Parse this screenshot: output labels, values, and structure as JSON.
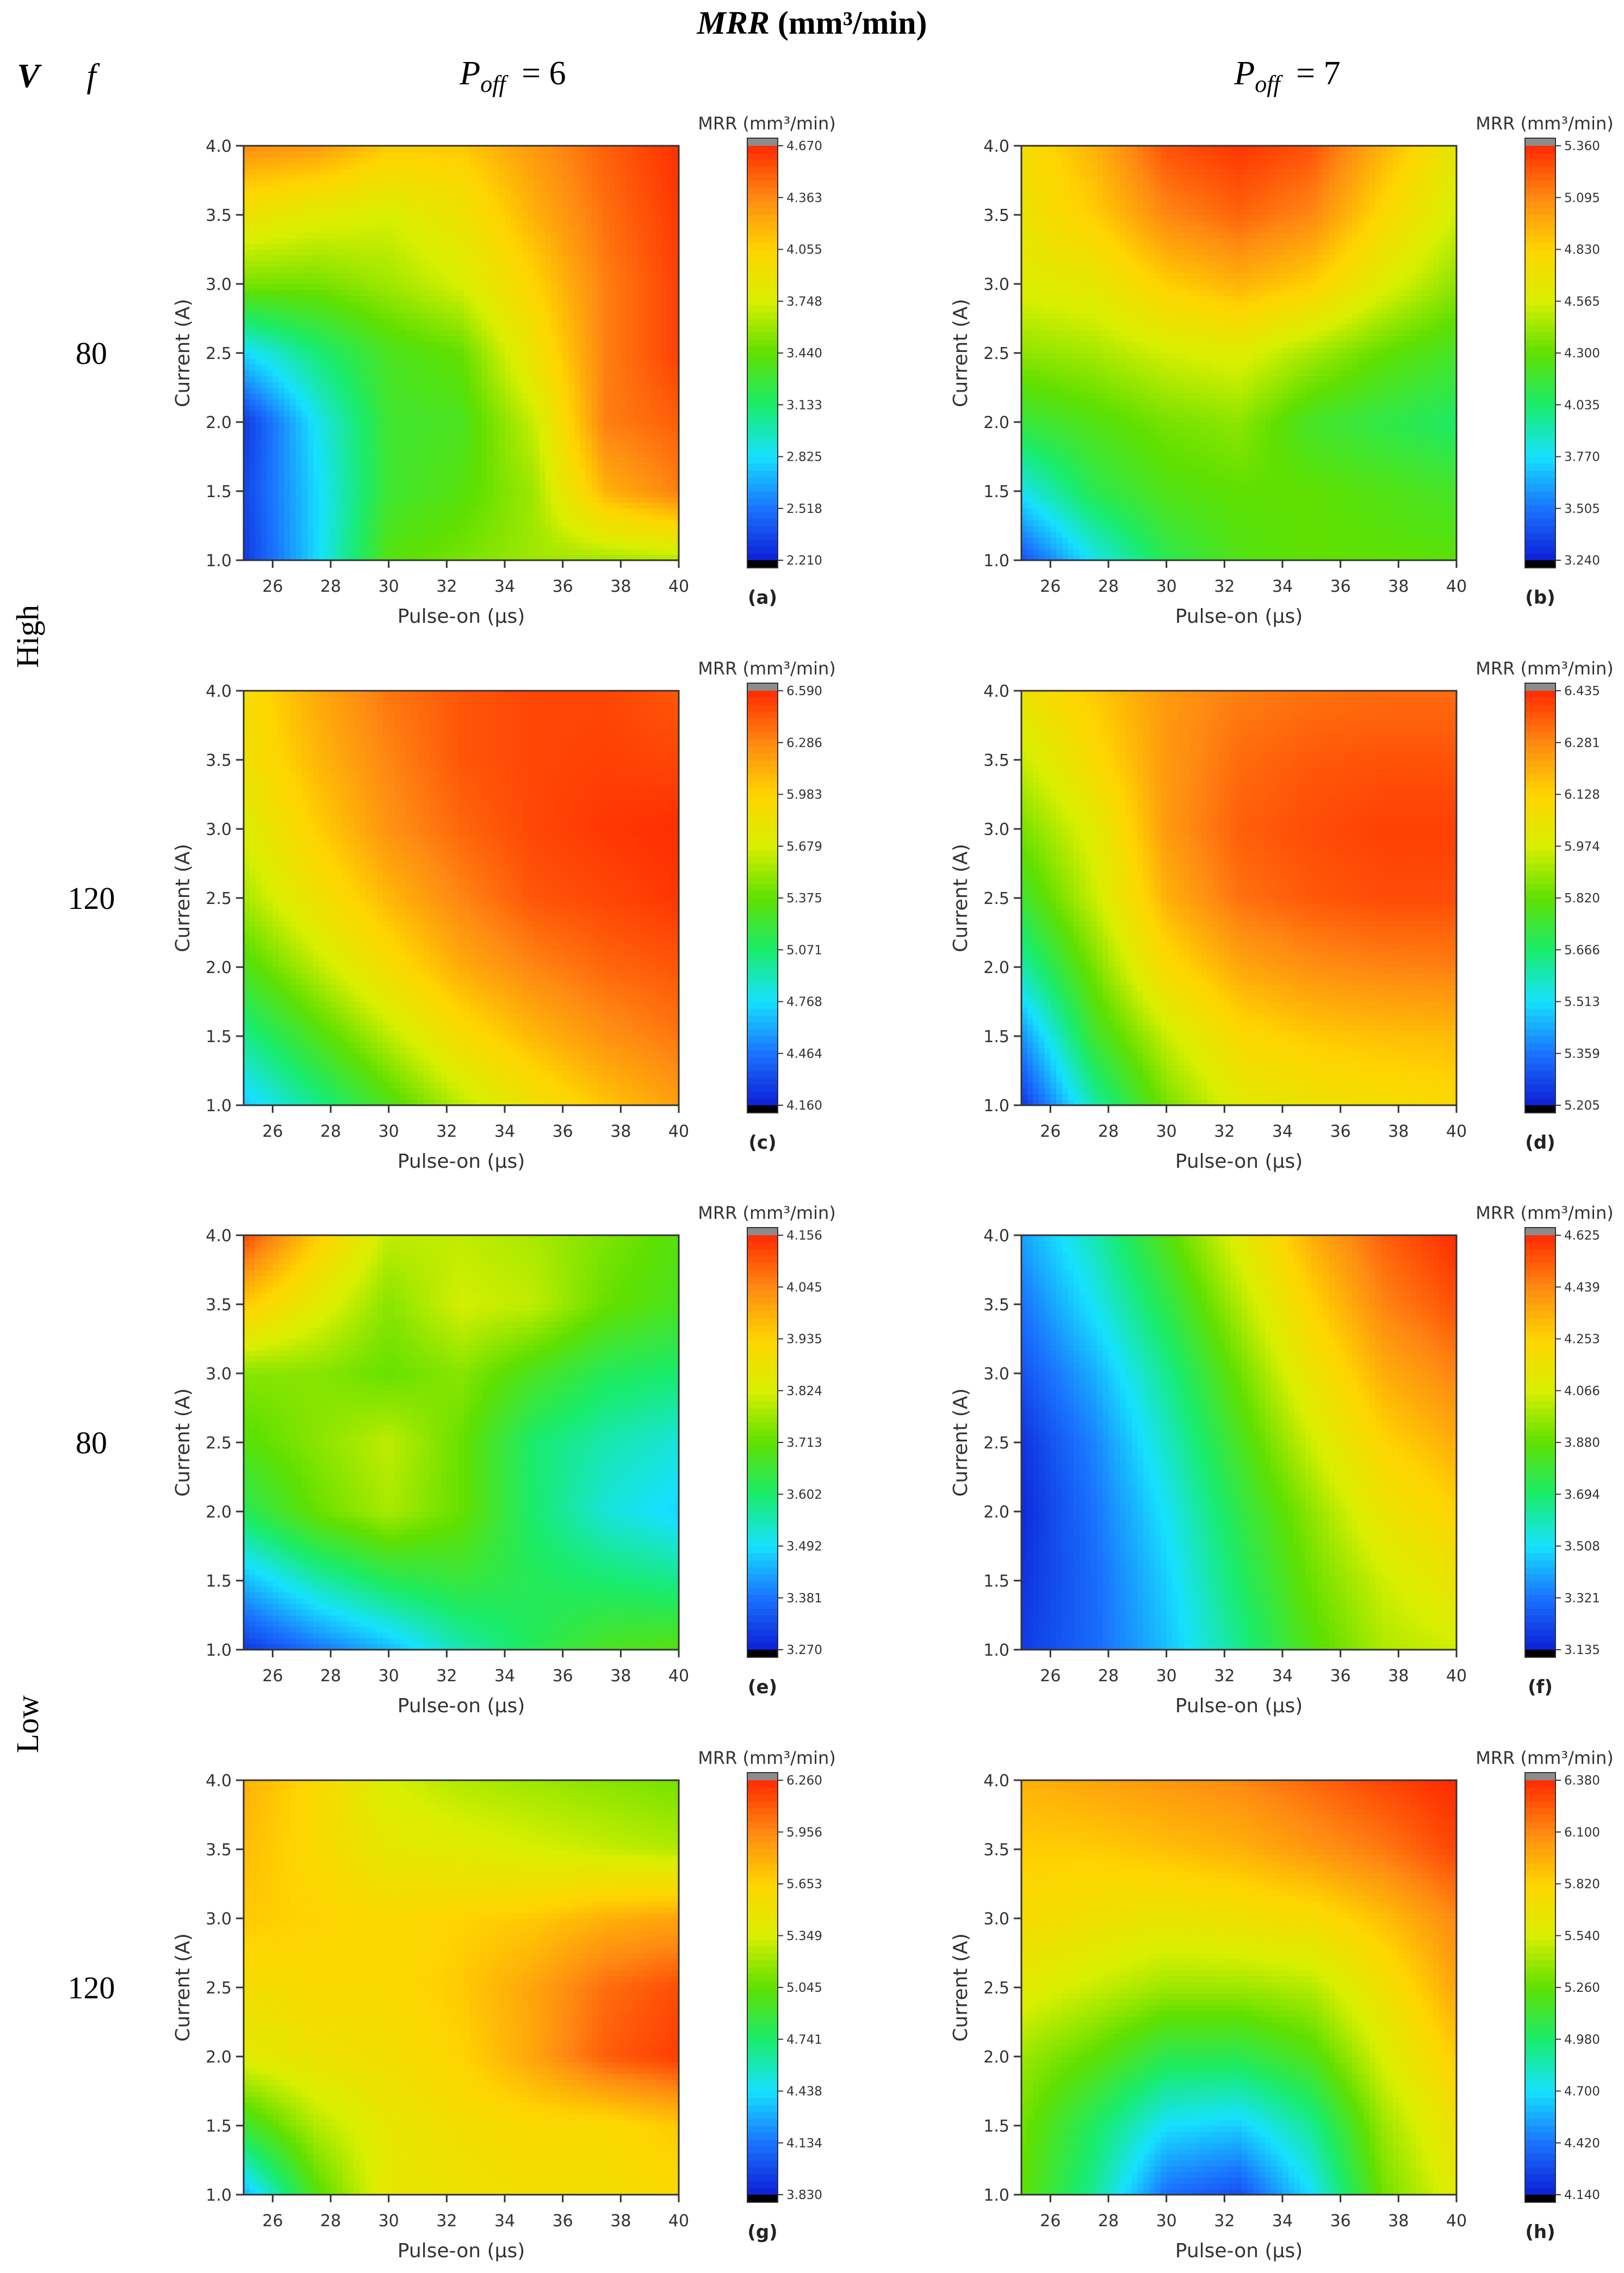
{
  "figure": {
    "title_var": "MRR",
    "title_unit": " (mm³/min)",
    "col_head_v": "V",
    "col_head_f": "f",
    "poff_symbol": "P",
    "poff_sub": "off",
    "poff_values": [
      "= 6",
      "= 7"
    ],
    "row_groups": [
      "High",
      "Low"
    ],
    "row_f_values": [
      "80",
      "120",
      "80",
      "120"
    ]
  },
  "colorscale": [
    "#000000",
    "#0b1fd6",
    "#1a73ff",
    "#16e1ff",
    "#19ec6a",
    "#5fe000",
    "#d9ef00",
    "#ffd400",
    "#ff8a12",
    "#ff2a00"
  ],
  "chart_data": [
    {
      "type": "contour",
      "panel_label": "(a)",
      "V": "High",
      "f": "80",
      "P_off": 6,
      "xlabel": "Pulse-on (µs)",
      "ylabel": "Current (A)",
      "colorbar_title": "MRR (mm³/min)",
      "xlim": [
        25,
        40
      ],
      "ylim": [
        1.0,
        4.0
      ],
      "xticks": [
        "26",
        "28",
        "30",
        "32",
        "34",
        "36",
        "38",
        "40"
      ],
      "yticks": [
        "1.0",
        "1.5",
        "2.0",
        "2.5",
        "3.0",
        "3.5",
        "4.0"
      ],
      "colorbar_ticks": [
        "2.210",
        "2.518",
        "2.825",
        "3.133",
        "3.440",
        "3.748",
        "4.055",
        "4.363",
        "4.670"
      ],
      "x": [
        25,
        27.5,
        30,
        32.5,
        35,
        37.5,
        40
      ],
      "y": [
        1.0,
        1.5,
        2.0,
        2.5,
        3.0,
        3.5,
        4.0
      ],
      "z": [
        [
          2.3,
          2.8,
          3.4,
          3.5,
          3.6,
          3.6,
          3.65
        ],
        [
          2.35,
          2.8,
          3.3,
          3.4,
          3.6,
          4.2,
          4.4
        ],
        [
          2.3,
          2.85,
          3.3,
          3.35,
          3.7,
          4.4,
          4.5
        ],
        [
          2.8,
          3.1,
          3.35,
          3.45,
          3.9,
          4.4,
          4.6
        ],
        [
          3.5,
          3.5,
          3.6,
          3.75,
          4.05,
          4.4,
          4.6
        ],
        [
          3.9,
          3.8,
          3.75,
          3.9,
          4.2,
          4.45,
          4.62
        ],
        [
          4.35,
          4.3,
          4.1,
          4.1,
          4.3,
          4.5,
          4.65
        ]
      ]
    },
    {
      "type": "contour",
      "panel_label": "(b)",
      "V": "High",
      "f": "80",
      "P_off": 7,
      "xlabel": "Pulse-on (µs)",
      "ylabel": "Current (A)",
      "colorbar_title": "MRR (mm³/min)",
      "xlim": [
        25,
        40
      ],
      "ylim": [
        1.0,
        4.0
      ],
      "xticks": [
        "26",
        "28",
        "30",
        "32",
        "34",
        "36",
        "38",
        "40"
      ],
      "yticks": [
        "1.0",
        "1.5",
        "2.0",
        "2.5",
        "3.0",
        "3.5",
        "4.0"
      ],
      "colorbar_ticks": [
        "3.240",
        "3.505",
        "3.770",
        "4.035",
        "4.300",
        "4.565",
        "4.830",
        "5.095",
        "5.360"
      ],
      "x": [
        25,
        27.5,
        30,
        32.5,
        35,
        37.5,
        40
      ],
      "y": [
        1.0,
        1.5,
        2.0,
        2.5,
        3.0,
        3.5,
        4.0
      ],
      "z": [
        [
          3.4,
          3.8,
          4.1,
          4.25,
          4.3,
          4.3,
          4.28
        ],
        [
          3.8,
          4.1,
          4.25,
          4.3,
          4.3,
          4.25,
          4.2
        ],
        [
          4.15,
          4.25,
          4.35,
          4.4,
          4.2,
          4.12,
          4.05
        ],
        [
          4.4,
          4.45,
          4.55,
          4.6,
          4.45,
          4.3,
          4.2
        ],
        [
          4.6,
          4.65,
          4.85,
          4.95,
          4.85,
          4.6,
          4.4
        ],
        [
          4.7,
          4.85,
          5.1,
          5.2,
          5.1,
          4.8,
          4.55
        ],
        [
          4.75,
          4.95,
          5.25,
          5.33,
          5.25,
          4.95,
          4.65
        ]
      ]
    },
    {
      "type": "contour",
      "panel_label": "(c)",
      "V": "High",
      "f": "120",
      "P_off": 6,
      "xlabel": "Pulse-on (µs)",
      "ylabel": "Current (A)",
      "colorbar_title": "MRR (mm³/min)",
      "xlim": [
        25,
        40
      ],
      "ylim": [
        1.0,
        4.0
      ],
      "xticks": [
        "26",
        "28",
        "30",
        "32",
        "34",
        "36",
        "38",
        "40"
      ],
      "yticks": [
        "1.0",
        "1.5",
        "2.0",
        "2.5",
        "3.0",
        "3.5",
        "4.0"
      ],
      "colorbar_ticks": [
        "4.160",
        "4.464",
        "4.768",
        "5.071",
        "5.375",
        "5.679",
        "5.983",
        "6.286",
        "6.590"
      ],
      "x": [
        25,
        27.5,
        30,
        32.5,
        35,
        37.5,
        40
      ],
      "y": [
        1.0,
        1.5,
        2.0,
        2.5,
        3.0,
        3.5,
        4.0
      ],
      "z": [
        [
          4.7,
          5.0,
          5.3,
          5.6,
          5.85,
          6.05,
          6.2
        ],
        [
          5.0,
          5.3,
          5.6,
          5.9,
          6.1,
          6.25,
          6.35
        ],
        [
          5.3,
          5.6,
          5.9,
          6.15,
          6.3,
          6.4,
          6.45
        ],
        [
          5.55,
          5.85,
          6.1,
          6.3,
          6.45,
          6.5,
          6.55
        ],
        [
          5.7,
          6.0,
          6.25,
          6.4,
          6.5,
          6.55,
          6.58
        ],
        [
          5.85,
          6.1,
          6.3,
          6.45,
          6.5,
          6.52,
          6.5
        ],
        [
          5.9,
          6.15,
          6.35,
          6.45,
          6.5,
          6.5,
          6.45
        ]
      ]
    },
    {
      "type": "contour",
      "panel_label": "(d)",
      "V": "High",
      "f": "120",
      "P_off": 7,
      "xlabel": "Pulse-on (µs)",
      "ylabel": "Current (A)",
      "colorbar_title": "MRR (mm³/min)",
      "xlim": [
        25,
        40
      ],
      "ylim": [
        1.0,
        4.0
      ],
      "xticks": [
        "26",
        "28",
        "30",
        "32",
        "34",
        "36",
        "38",
        "40"
      ],
      "yticks": [
        "1.0",
        "1.5",
        "2.0",
        "2.5",
        "3.0",
        "3.5",
        "4.0"
      ],
      "colorbar_ticks": [
        "5.205",
        "5.359",
        "5.513",
        "5.666",
        "5.820",
        "5.974",
        "6.128",
        "6.281",
        "6.435"
      ],
      "x": [
        25,
        27.5,
        30,
        32.5,
        35,
        37.5,
        40
      ],
      "y": [
        1.0,
        1.5,
        2.0,
        2.5,
        3.0,
        3.5,
        4.0
      ],
      "z": [
        [
          5.25,
          5.6,
          5.85,
          6.0,
          6.05,
          6.08,
          6.1
        ],
        [
          5.4,
          5.75,
          5.95,
          6.1,
          6.15,
          6.17,
          6.18
        ],
        [
          5.6,
          5.85,
          6.1,
          6.22,
          6.27,
          6.29,
          6.3
        ],
        [
          5.75,
          5.95,
          6.2,
          6.32,
          6.36,
          6.38,
          6.38
        ],
        [
          5.85,
          6.0,
          6.25,
          6.35,
          6.38,
          6.4,
          6.4
        ],
        [
          5.95,
          6.1,
          6.25,
          6.33,
          6.36,
          6.37,
          6.37
        ],
        [
          6.05,
          6.15,
          6.25,
          6.3,
          6.32,
          6.33,
          6.33
        ]
      ]
    },
    {
      "type": "contour",
      "panel_label": "(e)",
      "V": "Low",
      "f": "80",
      "P_off": 6,
      "xlabel": "Pulse-on (µs)",
      "ylabel": "Current (A)",
      "colorbar_title": "MRR (mm³/min)",
      "xlim": [
        25,
        40
      ],
      "ylim": [
        1.0,
        4.0
      ],
      "xticks": [
        "26",
        "28",
        "30",
        "32",
        "34",
        "36",
        "38",
        "40"
      ],
      "yticks": [
        "1.0",
        "1.5",
        "2.0",
        "2.5",
        "3.0",
        "3.5",
        "4.0"
      ],
      "colorbar_ticks": [
        "3.270",
        "3.381",
        "3.492",
        "3.602",
        "3.713",
        "3.824",
        "3.935",
        "4.045",
        "4.156"
      ],
      "x": [
        25,
        27.5,
        30,
        32.5,
        35,
        37.5,
        40
      ],
      "y": [
        1.0,
        1.5,
        2.0,
        2.5,
        3.0,
        3.5,
        4.0
      ],
      "z": [
        [
          3.3,
          3.38,
          3.45,
          3.55,
          3.62,
          3.68,
          3.7
        ],
        [
          3.45,
          3.55,
          3.62,
          3.65,
          3.62,
          3.6,
          3.58
        ],
        [
          3.62,
          3.72,
          3.78,
          3.72,
          3.6,
          3.52,
          3.48
        ],
        [
          3.7,
          3.75,
          3.8,
          3.72,
          3.6,
          3.55,
          3.52
        ],
        [
          3.75,
          3.75,
          3.72,
          3.75,
          3.68,
          3.62,
          3.6
        ],
        [
          3.95,
          3.85,
          3.75,
          3.82,
          3.8,
          3.72,
          3.68
        ],
        [
          4.12,
          3.95,
          3.8,
          3.8,
          3.78,
          3.74,
          3.7
        ]
      ]
    },
    {
      "type": "contour",
      "panel_label": "(f)",
      "V": "Low",
      "f": "80",
      "P_off": 7,
      "xlabel": "Pulse-on (µs)",
      "ylabel": "Current (A)",
      "colorbar_title": "MRR (mm³/min)",
      "xlim": [
        25,
        40
      ],
      "ylim": [
        1.0,
        4.0
      ],
      "xticks": [
        "26",
        "28",
        "30",
        "32",
        "34",
        "36",
        "38",
        "40"
      ],
      "yticks": [
        "1.0",
        "1.5",
        "2.0",
        "2.5",
        "3.0",
        "3.5",
        "4.0"
      ],
      "colorbar_ticks": [
        "3.135",
        "3.321",
        "3.508",
        "3.694",
        "3.880",
        "4.066",
        "4.253",
        "4.439",
        "4.625"
      ],
      "x": [
        25,
        27.5,
        30,
        32.5,
        35,
        37.5,
        40
      ],
      "y": [
        1.0,
        1.5,
        2.0,
        2.5,
        3.0,
        3.5,
        4.0
      ],
      "z": [
        [
          3.2,
          3.3,
          3.45,
          3.65,
          3.85,
          4.0,
          4.05
        ],
        [
          3.18,
          3.3,
          3.48,
          3.7,
          3.9,
          4.05,
          4.15
        ],
        [
          3.16,
          3.32,
          3.52,
          3.75,
          3.95,
          4.15,
          4.25
        ],
        [
          3.18,
          3.35,
          3.58,
          3.82,
          4.05,
          4.25,
          4.35
        ],
        [
          3.25,
          3.42,
          3.65,
          3.9,
          4.15,
          4.35,
          4.45
        ],
        [
          3.32,
          3.52,
          3.75,
          4.0,
          4.25,
          4.45,
          4.55
        ],
        [
          3.4,
          3.6,
          3.85,
          4.1,
          4.35,
          4.52,
          4.62
        ]
      ]
    },
    {
      "type": "contour",
      "panel_label": "(g)",
      "V": "Low",
      "f": "120",
      "P_off": 6,
      "xlabel": "Pulse-on (µs)",
      "ylabel": "Current (A)",
      "colorbar_title": "MRR (mm³/min)",
      "xlim": [
        25,
        40
      ],
      "ylim": [
        1.0,
        4.0
      ],
      "xticks": [
        "26",
        "28",
        "30",
        "32",
        "34",
        "36",
        "38",
        "40"
      ],
      "yticks": [
        "1.0",
        "1.5",
        "2.0",
        "2.5",
        "3.0",
        "3.5",
        "4.0"
      ],
      "colorbar_ticks": [
        "3.830",
        "4.134",
        "4.438",
        "4.741",
        "5.045",
        "5.349",
        "5.653",
        "5.956",
        "6.260"
      ],
      "x": [
        25,
        27.5,
        30,
        32.5,
        35,
        37.5,
        40
      ],
      "y": [
        1.0,
        1.5,
        2.0,
        2.5,
        3.0,
        3.5,
        4.0
      ],
      "z": [
        [
          4.3,
          5.0,
          5.45,
          5.5,
          5.55,
          5.55,
          5.6
        ],
        [
          4.9,
          5.25,
          5.45,
          5.55,
          5.6,
          5.6,
          5.7
        ],
        [
          5.4,
          5.5,
          5.55,
          5.65,
          5.85,
          6.1,
          6.2
        ],
        [
          5.55,
          5.6,
          5.6,
          5.7,
          5.85,
          6.05,
          6.15
        ],
        [
          5.7,
          5.65,
          5.6,
          5.65,
          5.7,
          5.8,
          5.85
        ],
        [
          5.75,
          5.6,
          5.45,
          5.4,
          5.35,
          5.3,
          5.25
        ],
        [
          5.8,
          5.6,
          5.35,
          5.25,
          5.2,
          5.15,
          5.1
        ]
      ]
    },
    {
      "type": "contour",
      "panel_label": "(h)",
      "V": "Low",
      "f": "120",
      "P_off": 7,
      "xlabel": "Pulse-on (µs)",
      "ylabel": "Current (A)",
      "colorbar_title": "MRR (mm³/min)",
      "xlim": [
        25,
        40
      ],
      "ylim": [
        1.0,
        4.0
      ],
      "xticks": [
        "26",
        "28",
        "30",
        "32",
        "34",
        "36",
        "38",
        "40"
      ],
      "yticks": [
        "1.0",
        "1.5",
        "2.0",
        "2.5",
        "3.0",
        "3.5",
        "4.0"
      ],
      "colorbar_ticks": [
        "4.140",
        "4.420",
        "4.700",
        "4.980",
        "5.260",
        "5.540",
        "5.820",
        "6.100",
        "6.380"
      ],
      "x": [
        25,
        27.5,
        30,
        32.5,
        35,
        37.5,
        40
      ],
      "y": [
        1.0,
        1.5,
        2.0,
        2.5,
        3.0,
        3.5,
        4.0
      ],
      "z": [
        [
          5.25,
          4.9,
          4.4,
          4.3,
          4.7,
          5.3,
          5.6
        ],
        [
          5.3,
          5.0,
          4.7,
          4.65,
          4.9,
          5.4,
          5.7
        ],
        [
          5.4,
          5.25,
          5.05,
          5.05,
          5.2,
          5.55,
          5.85
        ],
        [
          5.6,
          5.5,
          5.4,
          5.4,
          5.45,
          5.7,
          6.0
        ],
        [
          5.75,
          5.7,
          5.65,
          5.7,
          5.75,
          5.9,
          6.1
        ],
        [
          5.85,
          5.85,
          5.9,
          5.95,
          6.05,
          6.15,
          6.3
        ],
        [
          5.95,
          6.0,
          6.05,
          6.1,
          6.2,
          6.3,
          6.38
        ]
      ]
    }
  ]
}
